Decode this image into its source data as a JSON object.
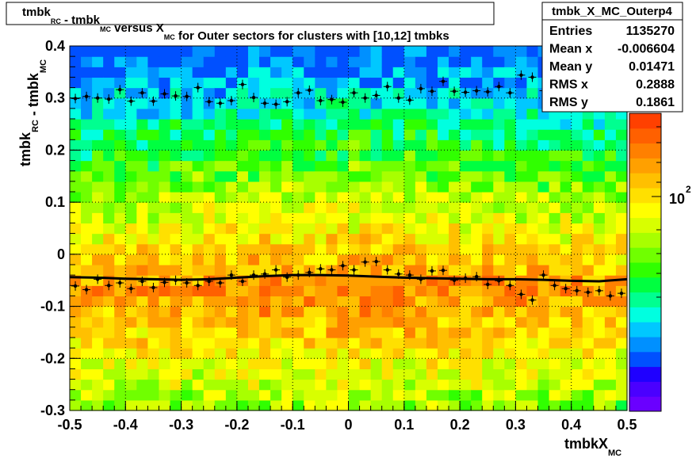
{
  "chart_data": {
    "type": "heatmap",
    "title": {
      "parts": [
        {
          "text": "tmbk",
          "sub": "RC"
        },
        {
          "text": " - tmbk",
          "sub": "MC"
        },
        {
          "text": " versus X",
          "sub": "MC"
        },
        {
          "text": " for Outer sectors for clusters with [10,12] tmbks",
          "sub": ""
        }
      ]
    },
    "xlabel": {
      "text": "tmbkX",
      "sub": "MC"
    },
    "ylabel": {
      "parts": [
        {
          "text": "tmbk",
          "sub": "RC"
        },
        {
          "text": " - tmbk",
          "sub": "MC"
        }
      ]
    },
    "xlim": [
      -0.5,
      0.5
    ],
    "ylim": [
      -0.3,
      0.4
    ],
    "xticks": [
      -0.5,
      -0.4,
      -0.3,
      -0.2,
      -0.1,
      0,
      0.1,
      0.2,
      0.3,
      0.4,
      0.5
    ],
    "xtick_labels": [
      "-0.5",
      "-0.4",
      "-0.3",
      "-0.2",
      "-0.1",
      "0",
      "0.1",
      "0.2",
      "0.3",
      "0.4",
      "0.5"
    ],
    "yticks": [
      -0.3,
      -0.2,
      -0.1,
      0,
      0.1,
      0.2,
      0.3,
      0.4
    ],
    "ytick_labels": [
      "-0.3",
      "-0.2",
      "-0.1",
      "0",
      "0.1",
      "0.2",
      "0.3",
      "0.4"
    ],
    "grid": true,
    "colorbar": {
      "scale": "log",
      "label_base": "10",
      "label_exp": "2"
    },
    "heatmap_shape": {
      "x_bins": 50,
      "y_bins": 35
    },
    "heatmap_model": "counts peak near y = -0.07 (orange/red band) and fall off toward y = 0.4 (blue)",
    "stats_box": {
      "title": "tmbk_X_MC_Outerp4",
      "rows": [
        {
          "label": "Entries",
          "value": "1135270"
        },
        {
          "label": "Mean x",
          "value": "-0.006604"
        },
        {
          "label": "Mean y",
          "value": "0.01471"
        },
        {
          "label": "RMS x",
          "value": "0.2888"
        },
        {
          "label": "RMS y",
          "value": "0.1861"
        }
      ]
    },
    "series": [
      {
        "kind": "markers",
        "x": [
          -0.49,
          -0.47,
          -0.45,
          -0.43,
          -0.41,
          -0.39,
          -0.37,
          -0.35,
          -0.33,
          -0.31,
          -0.29,
          -0.27,
          -0.25,
          -0.23,
          -0.21,
          -0.19,
          -0.17,
          -0.15,
          -0.13,
          -0.11,
          -0.09,
          -0.07,
          -0.05,
          -0.03,
          -0.01,
          0.01,
          0.03,
          0.05,
          0.07,
          0.09,
          0.11,
          0.13,
          0.15,
          0.17,
          0.19,
          0.21,
          0.23,
          0.25,
          0.27,
          0.29,
          0.31,
          0.33,
          0.35,
          0.37,
          0.39,
          0.41,
          0.43,
          0.45,
          0.47,
          0.49
        ],
        "y": [
          0.299,
          0.303,
          0.3,
          0.298,
          0.316,
          0.294,
          0.31,
          0.294,
          0.308,
          0.304,
          0.303,
          0.32,
          0.293,
          0.29,
          0.295,
          0.326,
          0.301,
          0.29,
          0.288,
          0.293,
          0.31,
          0.315,
          0.295,
          0.297,
          0.292,
          0.31,
          0.3,
          0.305,
          0.322,
          0.3,
          0.296,
          0.318,
          0.313,
          0.332,
          0.313,
          0.311,
          0.314,
          0.312,
          0.322,
          0.31,
          0.344,
          0.34,
          0.314,
          0.32,
          0.31,
          0.328,
          0.316,
          0.322,
          0.316,
          0.324
        ]
      },
      {
        "kind": "markers",
        "x": [
          -0.49,
          -0.47,
          -0.45,
          -0.43,
          -0.41,
          -0.39,
          -0.37,
          -0.35,
          -0.33,
          -0.31,
          -0.29,
          -0.27,
          -0.25,
          -0.23,
          -0.21,
          -0.19,
          -0.17,
          -0.15,
          -0.13,
          -0.11,
          -0.09,
          -0.07,
          -0.05,
          -0.03,
          -0.01,
          0.01,
          0.03,
          0.05,
          0.07,
          0.09,
          0.11,
          0.13,
          0.15,
          0.17,
          0.19,
          0.21,
          0.23,
          0.25,
          0.27,
          0.29,
          0.31,
          0.33,
          0.35,
          0.37,
          0.39,
          0.41,
          0.43,
          0.45,
          0.47,
          0.49
        ],
        "y": [
          -0.061,
          -0.068,
          -0.048,
          -0.06,
          -0.055,
          -0.066,
          -0.052,
          -0.064,
          -0.054,
          -0.05,
          -0.055,
          -0.06,
          -0.052,
          -0.055,
          -0.04,
          -0.052,
          -0.04,
          -0.038,
          -0.03,
          -0.044,
          -0.04,
          -0.035,
          -0.028,
          -0.03,
          -0.022,
          -0.03,
          -0.015,
          -0.014,
          -0.03,
          -0.038,
          -0.04,
          -0.048,
          -0.032,
          -0.031,
          -0.05,
          -0.046,
          -0.043,
          -0.058,
          -0.051,
          -0.06,
          -0.077,
          -0.088,
          -0.04,
          -0.06,
          -0.066,
          -0.07,
          -0.073,
          -0.07,
          -0.08,
          -0.075
        ]
      },
      {
        "kind": "line",
        "x": [
          -0.5,
          -0.45,
          -0.4,
          -0.35,
          -0.3,
          -0.25,
          -0.2,
          -0.15,
          -0.1,
          -0.05,
          0,
          0.05,
          0.1,
          0.15,
          0.2,
          0.25,
          0.3,
          0.35,
          0.4,
          0.45,
          0.5
        ],
        "y": [
          -0.044,
          -0.045,
          -0.047,
          -0.048,
          -0.049,
          -0.048,
          -0.045,
          -0.042,
          -0.04,
          -0.04,
          -0.041,
          -0.043,
          -0.045,
          -0.046,
          -0.047,
          -0.048,
          -0.048,
          -0.049,
          -0.051,
          -0.052,
          -0.048
        ]
      }
    ]
  }
}
